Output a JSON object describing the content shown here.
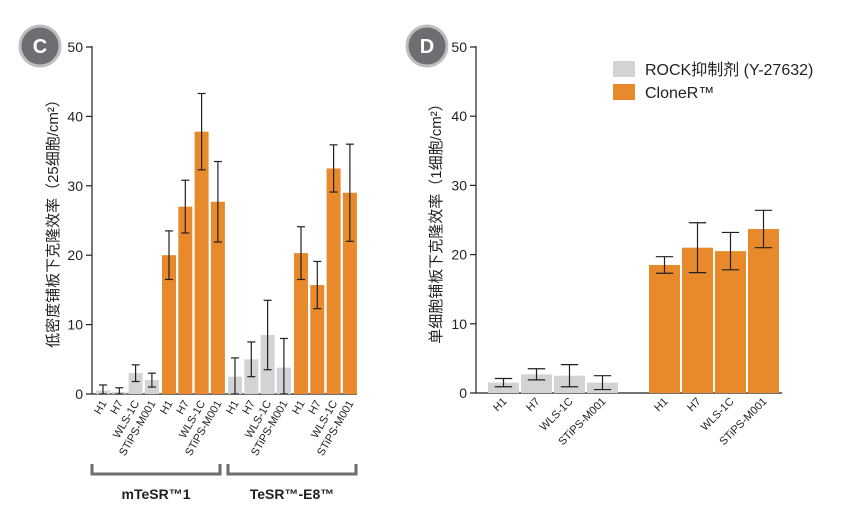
{
  "panels": {
    "c": {
      "label": "C"
    },
    "d": {
      "label": "D"
    }
  },
  "legend": {
    "rock_label": "ROCK抑制剂 (Y-27632)",
    "clone_label": "CloneR™"
  },
  "colors": {
    "rock": "#d2d3d5",
    "clone": "#e8892b",
    "badge": "#6d6e71",
    "axis": "#231f20",
    "bracket": "#6d6e71"
  },
  "chart_data": [
    {
      "type": "bar",
      "panel": "C",
      "ylabel": "低密度铺板下克隆效率（25细胞/cm²）",
      "ylim": [
        0,
        50
      ],
      "yticks": [
        0,
        10,
        20,
        30,
        40,
        50
      ],
      "groups": [
        "mTeSR™1",
        "TeSR™-E8™"
      ],
      "categories": [
        "H1",
        "H7",
        "WLS-1C",
        "STiPS-M001"
      ],
      "series": [
        {
          "name": "ROCK抑制剂 (Y-27632)",
          "group": "mTeSR™1",
          "values": [
            0.5,
            0.3,
            3.0,
            2.0
          ],
          "errors": [
            0.8,
            0.6,
            1.2,
            1.0
          ]
        },
        {
          "name": "CloneR™",
          "group": "mTeSR™1",
          "values": [
            20.0,
            27.0,
            37.8,
            27.7
          ],
          "errors": [
            3.5,
            3.8,
            5.5,
            5.8
          ]
        },
        {
          "name": "ROCK抑制剂 (Y-27632)",
          "group": "TeSR™-E8™",
          "values": [
            2.5,
            5.0,
            8.5,
            3.8
          ],
          "errors": [
            2.7,
            2.5,
            5.0,
            4.2
          ]
        },
        {
          "name": "CloneR™",
          "group": "TeSR™-E8™",
          "values": [
            20.3,
            15.7,
            32.5,
            29.0
          ],
          "errors": [
            3.8,
            3.4,
            3.4,
            7.0
          ]
        }
      ]
    },
    {
      "type": "bar",
      "panel": "D",
      "ylabel": "单细胞铺板下克隆效率（1细胞/cm²）",
      "ylim": [
        0,
        50
      ],
      "yticks": [
        0,
        10,
        20,
        30,
        40,
        50
      ],
      "categories": [
        "H1",
        "H7",
        "WLS-1C",
        "STiPS-M001"
      ],
      "series": [
        {
          "name": "ROCK抑制剂 (Y-27632)",
          "values": [
            1.5,
            2.7,
            2.5,
            1.5
          ],
          "errors": [
            0.6,
            0.8,
            1.6,
            1.0
          ]
        },
        {
          "name": "CloneR™",
          "values": [
            18.5,
            21.0,
            20.5,
            23.7
          ],
          "errors": [
            1.2,
            3.6,
            2.7,
            2.7
          ]
        }
      ]
    }
  ]
}
